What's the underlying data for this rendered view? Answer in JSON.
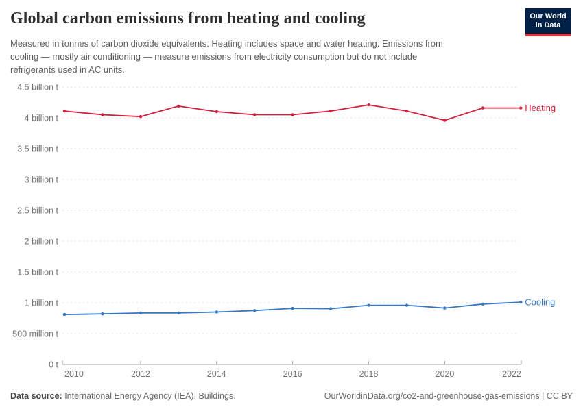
{
  "header": {
    "title": "Global carbon emissions from heating and cooling",
    "subtitle_lines": [
      "Measured in tonnes of carbon dioxide equivalents. Heating includes space and water heating. Emissions from",
      "cooling — mostly air conditioning — measure emissions from electricity consumption but do not include",
      "refrigerants used in AC units."
    ],
    "logo": {
      "line1": "Our World",
      "line2": "in Data"
    }
  },
  "chart_data": {
    "type": "line",
    "x": [
      2010,
      2011,
      2012,
      2013,
      2014,
      2015,
      2016,
      2017,
      2018,
      2019,
      2020,
      2021,
      2022
    ],
    "series": [
      {
        "name": "Heating",
        "color": "#d0203c",
        "values": [
          4.11,
          4.05,
          4.02,
          4.19,
          4.1,
          4.05,
          4.05,
          4.11,
          4.21,
          4.11,
          3.96,
          4.16,
          4.16
        ]
      },
      {
        "name": "Cooling",
        "color": "#3778c4",
        "values": [
          0.81,
          0.82,
          0.835,
          0.835,
          0.85,
          0.875,
          0.91,
          0.905,
          0.96,
          0.96,
          0.915,
          0.98,
          1.01
        ]
      }
    ],
    "yticks": [
      {
        "value": 0,
        "label": "0 t"
      },
      {
        "value": 0.5,
        "label": "500 million t"
      },
      {
        "value": 1,
        "label": "1 billion t"
      },
      {
        "value": 1.5,
        "label": "1.5 billion t"
      },
      {
        "value": 2,
        "label": "2 billion t"
      },
      {
        "value": 2.5,
        "label": "2.5 billion t"
      },
      {
        "value": 3,
        "label": "3 billion t"
      },
      {
        "value": 3.5,
        "label": "3.5 billion t"
      },
      {
        "value": 4,
        "label": "4 billion t"
      },
      {
        "value": 4.5,
        "label": "4.5 billion t"
      }
    ],
    "xticks": [
      2010,
      2012,
      2014,
      2016,
      2018,
      2020,
      2022
    ],
    "xlim": [
      2010,
      2022
    ],
    "ylim": [
      0,
      4.5
    ],
    "grid": true,
    "units": "tonnes of CO2 equivalents",
    "legend_position": "end-of-line"
  },
  "footer": {
    "source_label": "Data source:",
    "source_text": " International Energy Agency (IEA). Buildings.",
    "attribution": "OurWorldinData.org/co2-and-greenhouse-gas-emissions | CC BY"
  },
  "colors": {
    "heating": "#d0203c",
    "cooling": "#3778c4",
    "grid": "#dcdcdc",
    "axis": "#a5a5a5",
    "logo_bg": "#002147",
    "logo_red": "#d93a3e"
  }
}
